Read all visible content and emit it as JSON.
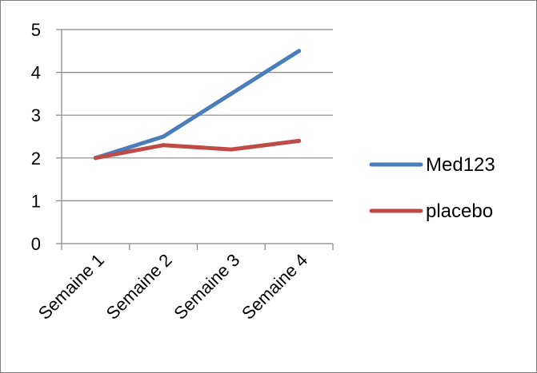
{
  "chart_data": {
    "type": "line",
    "title": "",
    "xlabel": "",
    "ylabel": "",
    "categories": [
      "Semaine 1",
      "Semaine 2",
      "Semaine 3",
      "Semaine 4"
    ],
    "series": [
      {
        "name": "Med123",
        "values": [
          2,
          2.5,
          3.5,
          4.5
        ],
        "color": "#4a7ebb"
      },
      {
        "name": "placebo",
        "values": [
          2,
          2.3,
          2.2,
          2.4
        ],
        "color": "#be4b48"
      }
    ],
    "ylim": [
      0,
      5
    ],
    "yticks": [
      0,
      1,
      2,
      3,
      4,
      5
    ],
    "grid": true,
    "legend_position": "right"
  }
}
